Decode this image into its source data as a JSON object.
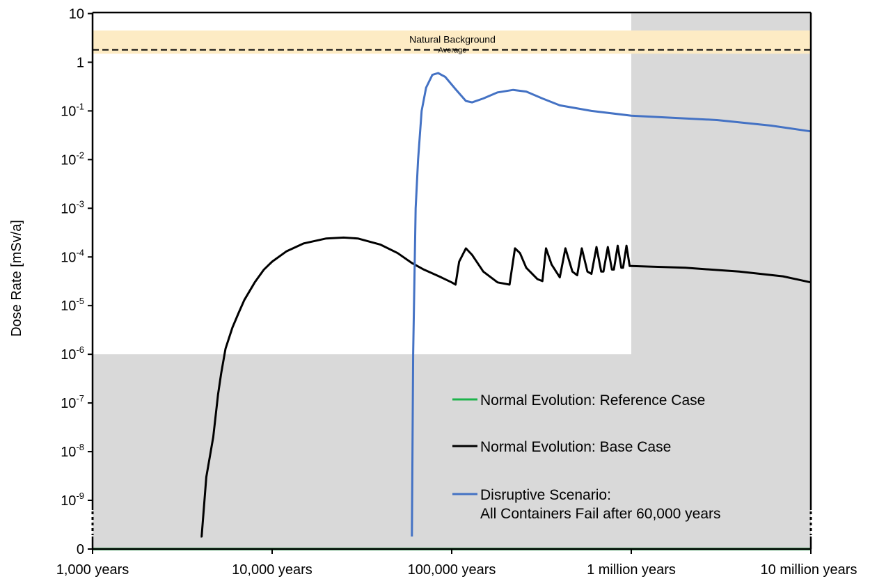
{
  "chart_data": {
    "type": "line",
    "ylabel": "Dose Rate [mSv/a]",
    "x_scale": "log",
    "y_scale": "log with zero baseline (axis break below 10^-9)",
    "xlim_years": [
      1000,
      10000000
    ],
    "ylim": [
      "0",
      10
    ],
    "x_ticks": [
      {
        "value": 1000,
        "label": "1,000 years"
      },
      {
        "value": 10000,
        "label": "10,000 years"
      },
      {
        "value": 100000,
        "label": "100,000 years"
      },
      {
        "value": 1000000,
        "label": "1 million years"
      },
      {
        "value": 10000000,
        "label": "10 million years"
      }
    ],
    "y_ticks": [
      {
        "value": 0,
        "label": "0"
      },
      {
        "value": 1e-09,
        "base": "10",
        "exp": "-9"
      },
      {
        "value": 1e-08,
        "base": "10",
        "exp": "-8"
      },
      {
        "value": 1e-07,
        "base": "10",
        "exp": "-7"
      },
      {
        "value": 1e-06,
        "base": "10",
        "exp": "-6"
      },
      {
        "value": 1e-05,
        "base": "10",
        "exp": "-5"
      },
      {
        "value": 0.0001,
        "base": "10",
        "exp": "-4"
      },
      {
        "value": 0.001,
        "base": "10",
        "exp": "-3"
      },
      {
        "value": 0.01,
        "base": "10",
        "exp": "-2"
      },
      {
        "value": 0.1,
        "base": "10",
        "exp": "-1"
      },
      {
        "value": 1,
        "label": "1"
      },
      {
        "value": 10,
        "label": "10"
      }
    ],
    "natural_background": {
      "label_line1": "Natural Background",
      "label_line2": "Average",
      "range": [
        1.5,
        4.5
      ],
      "average": 1.8
    },
    "shaded_regions": [
      {
        "x": [
          1000,
          1000000
        ],
        "y": [
          "0",
          1e-06
        ]
      },
      {
        "x": [
          1000000,
          10000000
        ],
        "y": [
          "0",
          10
        ]
      }
    ],
    "legend": {
      "placement": "lower-right",
      "entries": [
        {
          "line1": "Normal Evolution: Reference Case",
          "line2": "",
          "color": "#1DB34B"
        },
        {
          "line1": "Normal Evolution: Base Case",
          "line2": "",
          "color": "#000000"
        },
        {
          "line1": "Disruptive Scenario:",
          "line2": "All Containers Fail after 60,000 years",
          "color": "#4472C4"
        }
      ]
    },
    "series": [
      {
        "name": "Normal Evolution: Reference Case",
        "color": "#1DB34B",
        "points": [
          [
            1000,
            0
          ],
          [
            10000000,
            0
          ]
        ]
      },
      {
        "name": "Normal Evolution: Base Case",
        "color": "#000000",
        "points": [
          [
            4000,
            1e-10
          ],
          [
            4050,
            7e-10
          ],
          [
            4300,
            3e-09
          ],
          [
            4700,
            2e-08
          ],
          [
            5000,
            1.5e-07
          ],
          [
            5200,
            4e-07
          ],
          [
            5500,
            1.3e-06
          ],
          [
            6000,
            3.5e-06
          ],
          [
            6500,
            7e-06
          ],
          [
            7000,
            1.3e-05
          ],
          [
            8000,
            3e-05
          ],
          [
            9000,
            5.5e-05
          ],
          [
            10000,
            8e-05
          ],
          [
            12000,
            0.00013
          ],
          [
            15000,
            0.00019
          ],
          [
            20000,
            0.00024
          ],
          [
            25000,
            0.00025
          ],
          [
            30000,
            0.00024
          ],
          [
            40000,
            0.00018
          ],
          [
            50000,
            0.00012
          ],
          [
            60000,
            7.5e-05
          ],
          [
            70000,
            5.5e-05
          ],
          [
            85000,
            4e-05
          ],
          [
            100000,
            3e-05
          ],
          [
            105000,
            2.7e-05
          ],
          [
            110000,
            8e-05
          ],
          [
            120000,
            0.00015
          ],
          [
            130000,
            0.00011
          ],
          [
            150000,
            5e-05
          ],
          [
            180000,
            3e-05
          ],
          [
            210000,
            2.7e-05
          ],
          [
            225000,
            0.00015
          ],
          [
            240000,
            0.00012
          ],
          [
            260000,
            6e-05
          ],
          [
            300000,
            3.5e-05
          ],
          [
            320000,
            3.2e-05
          ],
          [
            335000,
            0.00015
          ],
          [
            360000,
            7e-05
          ],
          [
            400000,
            3.8e-05
          ],
          [
            430000,
            0.00015
          ],
          [
            470000,
            5e-05
          ],
          [
            500000,
            4.2e-05
          ],
          [
            530000,
            0.00015
          ],
          [
            570000,
            5e-05
          ],
          [
            600000,
            4.5e-05
          ],
          [
            640000,
            0.00016
          ],
          [
            680000,
            5e-05
          ],
          [
            700000,
            5e-05
          ],
          [
            740000,
            0.00016
          ],
          [
            780000,
            5.5e-05
          ],
          [
            800000,
            5.5e-05
          ],
          [
            840000,
            0.00017
          ],
          [
            880000,
            6e-05
          ],
          [
            900000,
            6e-05
          ],
          [
            940000,
            0.00017
          ],
          [
            980000,
            6.5e-05
          ],
          [
            1000000,
            6.5e-05
          ],
          [
            2000000,
            6e-05
          ],
          [
            4000000,
            5e-05
          ],
          [
            7000000,
            4e-05
          ],
          [
            10000000,
            3e-05
          ]
        ]
      },
      {
        "name": "Disruptive Scenario: All Containers Fail after 60,000 years",
        "color": "#4472C4",
        "points": [
          [
            60000,
            1e-10
          ],
          [
            61000,
            1e-06
          ],
          [
            63000,
            0.001
          ],
          [
            65000,
            0.01
          ],
          [
            68000,
            0.1
          ],
          [
            72000,
            0.3
          ],
          [
            78000,
            0.55
          ],
          [
            84000,
            0.6
          ],
          [
            92000,
            0.5
          ],
          [
            105000,
            0.28
          ],
          [
            120000,
            0.16
          ],
          [
            130000,
            0.15
          ],
          [
            150000,
            0.18
          ],
          [
            180000,
            0.24
          ],
          [
            220000,
            0.27
          ],
          [
            260000,
            0.25
          ],
          [
            320000,
            0.18
          ],
          [
            400000,
            0.13
          ],
          [
            600000,
            0.1
          ],
          [
            1000000,
            0.08
          ],
          [
            3000000,
            0.065
          ],
          [
            6000000,
            0.05
          ],
          [
            10000000,
            0.038
          ]
        ]
      }
    ]
  }
}
